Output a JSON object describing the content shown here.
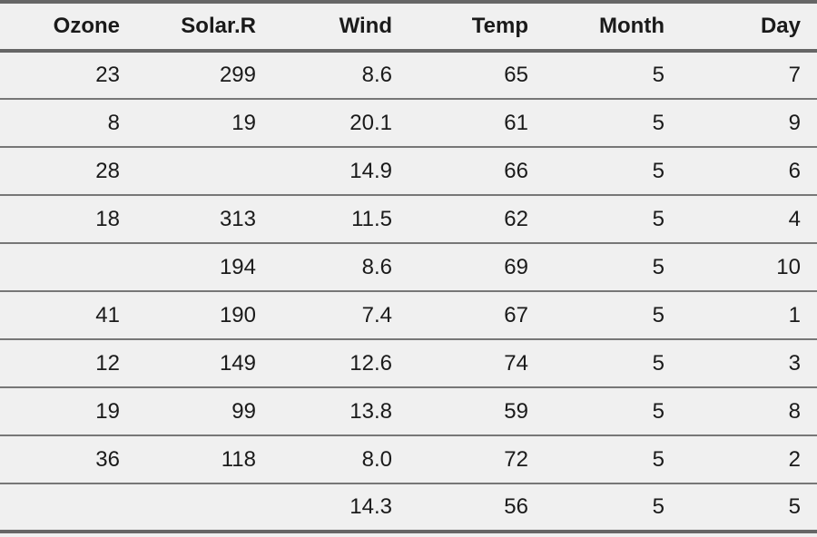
{
  "chart_data": {
    "type": "table",
    "columns": [
      "Ozone",
      "Solar.R",
      "Wind",
      "Temp",
      "Month",
      "Day"
    ],
    "rows": [
      [
        "23",
        "299",
        "8.6",
        "65",
        "5",
        "7"
      ],
      [
        "8",
        "19",
        "20.1",
        "61",
        "5",
        "9"
      ],
      [
        "28",
        "",
        "14.9",
        "66",
        "5",
        "6"
      ],
      [
        "18",
        "313",
        "11.5",
        "62",
        "5",
        "4"
      ],
      [
        "",
        "194",
        "8.6",
        "69",
        "5",
        "10"
      ],
      [
        "41",
        "190",
        "7.4",
        "67",
        "5",
        "1"
      ],
      [
        "12",
        "149",
        "12.6",
        "74",
        "5",
        "3"
      ],
      [
        "19",
        "99",
        "13.8",
        "59",
        "5",
        "8"
      ],
      [
        "36",
        "118",
        "8.0",
        "72",
        "5",
        "2"
      ],
      [
        "",
        "",
        "14.3",
        "56",
        "5",
        "5"
      ]
    ]
  }
}
